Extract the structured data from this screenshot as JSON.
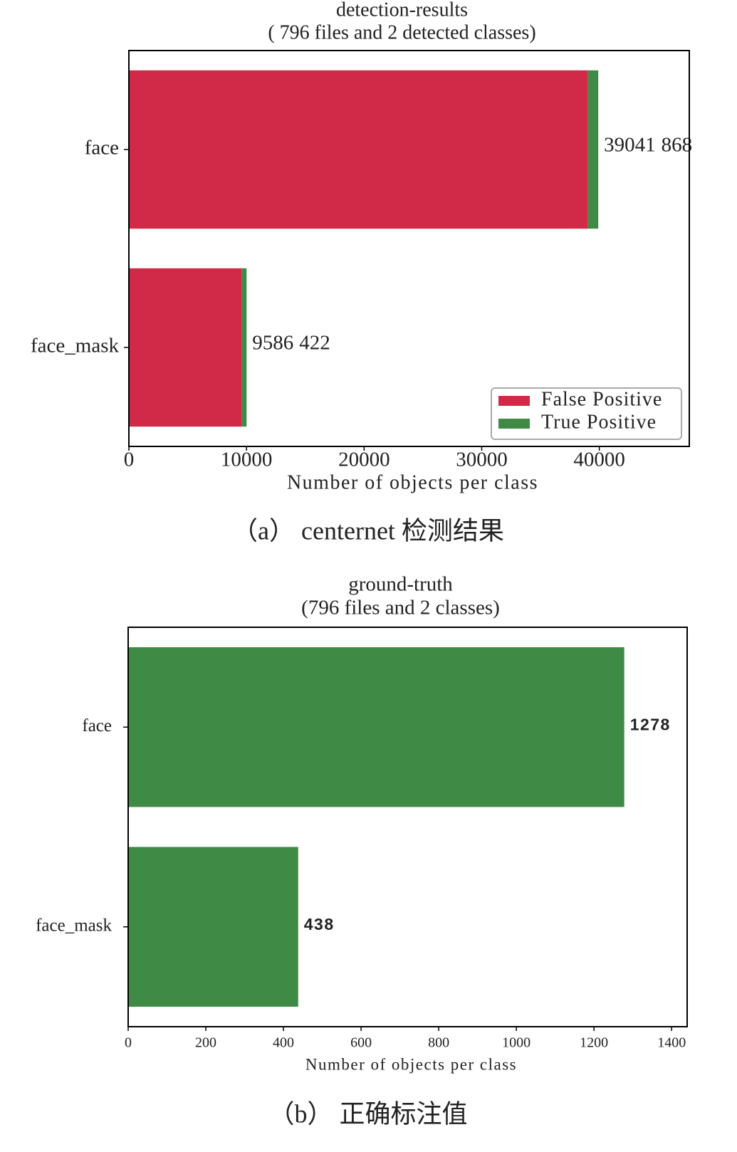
{
  "chart_data": [
    {
      "type": "stacked_barh",
      "title": "detection-results",
      "subtitle": "( 796 files and 2 detected classes)",
      "xlabel": "Number of objects per class",
      "caption": "（a） centernet 检测结果",
      "categories": [
        "face",
        "face_mask"
      ],
      "series": [
        {
          "name": "False Positive",
          "color": "#d12a48",
          "values": [
            39041,
            9586
          ]
        },
        {
          "name": "True Positive",
          "color": "#3f8b45",
          "values": [
            868,
            422
          ]
        }
      ],
      "xlim": [
        0,
        47650
      ],
      "xticks": [
        0,
        10000,
        20000,
        30000,
        40000
      ],
      "legend": "lower right"
    },
    {
      "type": "barh",
      "title": "ground-truth",
      "subtitle": "(796 files and 2 classes)",
      "xlabel": "Number of objects per class",
      "caption": "（b） 正确标注值",
      "categories": [
        "face",
        "face_mask"
      ],
      "values": [
        1278,
        438
      ],
      "color": "#3f8b45",
      "xlim": [
        0,
        1440
      ],
      "xticks": [
        0,
        200,
        400,
        600,
        800,
        1000,
        1200,
        1400
      ]
    }
  ]
}
